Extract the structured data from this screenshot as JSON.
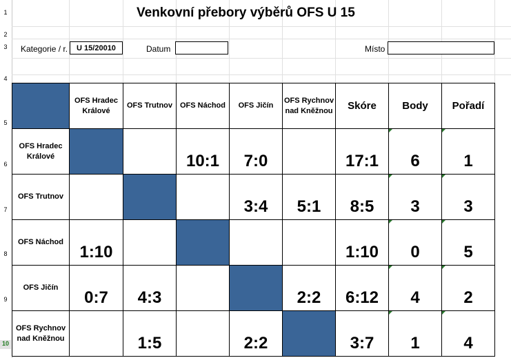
{
  "title": "Venkovní přebory výběrů OFS U 15",
  "labels": {
    "kategorie": "Kategorie / r.",
    "kategorie_value": "U 15/20010",
    "datum": "Datum",
    "misto": "Místo"
  },
  "row_numbers": [
    "1",
    "2",
    "3",
    "4",
    "5",
    "6",
    "7",
    "8",
    "9",
    "10"
  ],
  "columns": [
    "OFS Hradec Králové",
    "OFS Trutnov",
    "OFS Náchod",
    "OFS Jičín",
    "OFS Rychnov nad Kněžnou",
    "Skóre",
    "Body",
    "Pořadí"
  ],
  "teams": [
    {
      "name": "OFS Hradec Králové",
      "results": [
        "",
        "",
        "10:1",
        "7:0",
        ""
      ],
      "score": "17:1",
      "points": "6",
      "rank": "1"
    },
    {
      "name": "OFS Trutnov",
      "results": [
        "",
        "",
        "",
        "3:4",
        "5:1"
      ],
      "score": "8:5",
      "points": "3",
      "rank": "3"
    },
    {
      "name": "OFS Náchod",
      "results": [
        "1:10",
        "",
        "",
        "",
        ""
      ],
      "score": "1:10",
      "points": "0",
      "rank": "5"
    },
    {
      "name": "OFS Jičín",
      "results": [
        "0:7",
        "4:3",
        "",
        "",
        "2:2"
      ],
      "score": "6:12",
      "points": "4",
      "rank": "2"
    },
    {
      "name": "OFS Rychnov nad Kněžnou",
      "results": [
        "",
        "1:5",
        "",
        "2:2",
        ""
      ],
      "score": "3:7",
      "points": "1",
      "rank": "4"
    }
  ]
}
